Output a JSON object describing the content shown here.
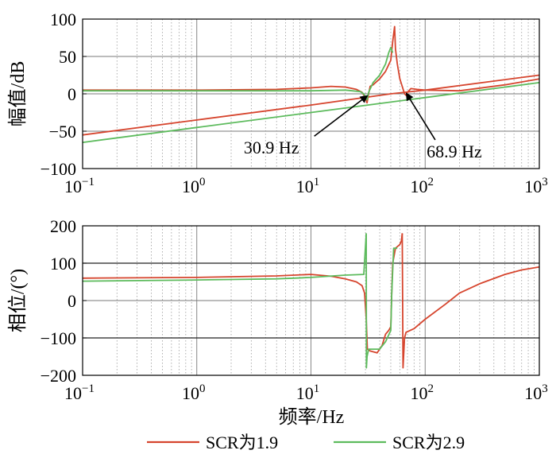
{
  "chart_data": [
    {
      "type": "line",
      "panel": "magnitude",
      "ylabel": "幅值/dB",
      "xscale": "log",
      "xlim": [
        0.1,
        1000
      ],
      "ylim": [
        -100,
        100
      ],
      "yticks": [
        100,
        50,
        0,
        -50,
        -100
      ],
      "ytick_labels": [
        "100",
        "50",
        "0",
        "−50",
        "−100"
      ],
      "xtick_base_labels": [
        "10",
        "10",
        "10",
        "10",
        "10"
      ],
      "xtick_exp_labels": [
        "−1",
        "0",
        "1",
        "2",
        "3"
      ],
      "grid": true,
      "series": [
        {
          "name": "SCR为1.9",
          "color": "#d6452e",
          "points": [
            [
              0.1,
              -55
            ],
            [
              1,
              -35
            ],
            [
              10,
              -15
            ],
            [
              50,
              0
            ],
            [
              100,
              5
            ],
            [
              1000,
              25
            ]
          ]
        },
        {
          "name": "SCR为1.9",
          "color": "#d6452e",
          "points": [
            [
              0.1,
              5
            ],
            [
              1,
              5
            ],
            [
              5,
              6
            ],
            [
              10,
              8
            ],
            [
              15,
              10
            ],
            [
              20,
              9
            ],
            [
              25,
              6
            ],
            [
              28,
              2
            ],
            [
              30,
              -5
            ],
            [
              31,
              -12
            ],
            [
              32,
              0
            ],
            [
              33,
              10
            ],
            [
              35,
              12
            ],
            [
              40,
              20
            ],
            [
              45,
              30
            ],
            [
              50,
              45
            ],
            [
              52,
              70
            ],
            [
              54,
              90
            ],
            [
              55,
              60
            ],
            [
              57,
              40
            ],
            [
              60,
              20
            ],
            [
              63,
              10
            ],
            [
              66,
              0
            ],
            [
              68,
              -2
            ],
            [
              70,
              2
            ],
            [
              75,
              7
            ],
            [
              85,
              6
            ],
            [
              100,
              5
            ],
            [
              200,
              4
            ],
            [
              500,
              12
            ],
            [
              1000,
              20
            ]
          ]
        },
        {
          "name": "SCR为2.9",
          "color": "#5dbb5d",
          "points": [
            [
              0.1,
              -65
            ],
            [
              1,
              -45
            ],
            [
              10,
              -25
            ],
            [
              100,
              -5
            ],
            [
              1000,
              15
            ]
          ]
        },
        {
          "name": "SCR为2.9",
          "color": "#5dbb5d",
          "points": [
            [
              0.1,
              4
            ],
            [
              1,
              4
            ],
            [
              10,
              4
            ],
            [
              20,
              5
            ],
            [
              27,
              3
            ],
            [
              29,
              0
            ],
            [
              30,
              -5
            ],
            [
              31,
              -8
            ],
            [
              32,
              2
            ],
            [
              35,
              15
            ],
            [
              40,
              25
            ],
            [
              45,
              40
            ],
            [
              48,
              55
            ],
            [
              50,
              62
            ],
            [
              52,
              55
            ]
          ]
        }
      ],
      "annotations": [
        {
          "text": "30.9 Hz",
          "x": 30.9,
          "y": -3,
          "text_x": 4.5,
          "text_y": -80
        },
        {
          "text": "68.9 Hz",
          "x": 68.9,
          "y": 0,
          "text_x": 180,
          "text_y": -85
        }
      ]
    },
    {
      "type": "line",
      "panel": "phase",
      "ylabel": "相位/(°)",
      "xlabel": "频率/Hz",
      "xscale": "log",
      "xlim": [
        0.1,
        1000
      ],
      "ylim": [
        -200,
        200
      ],
      "yticks": [
        200,
        100,
        0,
        -100,
        -200
      ],
      "ytick_labels": [
        "200",
        "100",
        "0",
        "−100",
        "−200"
      ],
      "xtick_base_labels": [
        "10",
        "10",
        "10",
        "10",
        "10"
      ],
      "xtick_exp_labels": [
        "−1",
        "0",
        "1",
        "2",
        "3"
      ],
      "grid": true,
      "series": [
        {
          "name": "SCR为1.9",
          "color": "#d6452e",
          "segments": [
            [
              [
                0.1,
                60
              ],
              [
                1,
                62
              ],
              [
                5,
                66
              ],
              [
                10,
                70
              ],
              [
                15,
                65
              ],
              [
                20,
                58
              ],
              [
                25,
                50
              ],
              [
                28,
                40
              ],
              [
                29.5,
                20
              ],
              [
                30.5,
                -50
              ],
              [
                31.2,
                -130
              ],
              [
                33,
                -135
              ],
              [
                38,
                -140
              ],
              [
                42,
                -120
              ],
              [
                45,
                -90
              ],
              [
                48,
                -80
              ],
              [
                50,
                -70
              ],
              [
                51,
                20
              ],
              [
                52,
                100
              ],
              [
                55,
                140
              ],
              [
                60,
                150
              ],
              [
                62,
                160
              ],
              [
                63,
                180
              ]
            ],
            [
              [
                63,
                180
              ],
              [
                64,
                -180
              ],
              [
                66,
                -100
              ],
              [
                68,
                -85
              ],
              [
                80,
                -75
              ],
              [
                100,
                -50
              ],
              [
                150,
                -10
              ],
              [
                200,
                20
              ],
              [
                300,
                45
              ],
              [
                500,
                70
              ],
              [
                700,
                82
              ],
              [
                1000,
                90
              ]
            ]
          ]
        },
        {
          "name": "SCR为2.9",
          "color": "#5dbb5d",
          "segments": [
            [
              [
                0.1,
                52
              ],
              [
                1,
                55
              ],
              [
                5,
                58
              ],
              [
                10,
                62
              ],
              [
                20,
                68
              ],
              [
                29,
                70
              ],
              [
                30.5,
                180
              ]
            ],
            [
              [
                30.5,
                180
              ],
              [
                30.6,
                -180
              ],
              [
                31,
                -150
              ],
              [
                32,
                -130
              ],
              [
                36,
                -130
              ],
              [
                40,
                -130
              ],
              [
                45,
                -110
              ],
              [
                50,
                -80
              ],
              [
                51,
                20
              ],
              [
                53,
                140
              ],
              [
                57,
                140
              ]
            ]
          ]
        }
      ]
    }
  ],
  "legend": {
    "placement": "bottom",
    "items": [
      {
        "label": "SCR为1.9",
        "color": "#d6452e"
      },
      {
        "label": "SCR为2.9",
        "color": "#5dbb5d"
      }
    ]
  }
}
